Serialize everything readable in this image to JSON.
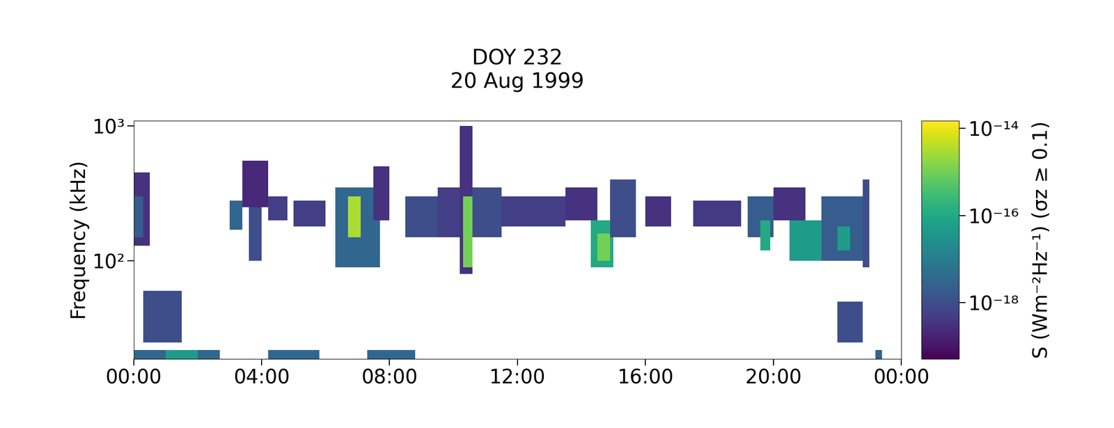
{
  "chart_data": {
    "type": "heatmap",
    "title": "DOY 232\n20 Aug 1999",
    "y_label": "Frequency (kHz)",
    "colorbar_label": "S (Wm⁻²Hz⁻¹) (σz ≥ 0.1)",
    "log": "y",
    "xlim": [
      0,
      24
    ],
    "xticks": [
      {
        "value": 0,
        "label": "00:00"
      },
      {
        "value": 4,
        "label": "04:00"
      },
      {
        "value": 8,
        "label": "08:00"
      },
      {
        "value": 12,
        "label": "12:00"
      },
      {
        "value": 16,
        "label": "16:00"
      },
      {
        "value": 20,
        "label": "20:00"
      },
      {
        "value": 24,
        "label": "00:00"
      }
    ],
    "ylim": [
      18.8,
      1090
    ],
    "yticks": [
      {
        "value": 100,
        "label": "10²"
      },
      {
        "value": 1000,
        "label": "10³"
      }
    ],
    "colorbar_range": [
      5e-20,
      1.5e-14
    ],
    "colorbar_ticks": [
      {
        "value": 1e-18,
        "label": "10⁻¹⁸"
      },
      {
        "value": 1e-16,
        "label": "10⁻¹⁶"
      },
      {
        "value": 1e-14,
        "label": "10⁻¹⁴"
      }
    ],
    "cells": [
      {
        "t0": 0.0,
        "t1": 0.5,
        "f0": 130,
        "f1": 450,
        "S": 3e-19
      },
      {
        "t0": 0.0,
        "t1": 0.3,
        "f0": 150,
        "f1": 300,
        "S": 2e-18
      },
      {
        "t0": 0.0,
        "t1": 2.7,
        "f0": 18.8,
        "f1": 22,
        "S": 3e-18
      },
      {
        "t0": 1.0,
        "t1": 2.0,
        "f0": 18.8,
        "f1": 22,
        "S": 5e-17
      },
      {
        "t0": 0.3,
        "t1": 1.5,
        "f0": 25,
        "f1": 60,
        "S": 1e-18
      },
      {
        "t0": 3.0,
        "t1": 3.4,
        "f0": 170,
        "f1": 280,
        "S": 3e-18
      },
      {
        "t0": 3.4,
        "t1": 4.2,
        "f0": 250,
        "f1": 550,
        "S": 2e-19
      },
      {
        "t0": 3.6,
        "t1": 4.0,
        "f0": 100,
        "f1": 250,
        "S": 1e-18
      },
      {
        "t0": 4.2,
        "t1": 4.8,
        "f0": 200,
        "f1": 300,
        "S": 5e-19
      },
      {
        "t0": 4.2,
        "t1": 5.8,
        "f0": 18.8,
        "f1": 22,
        "S": 3e-18
      },
      {
        "t0": 5.0,
        "t1": 6.0,
        "f0": 180,
        "f1": 280,
        "S": 5e-19
      },
      {
        "t0": 6.3,
        "t1": 7.7,
        "f0": 90,
        "f1": 350,
        "S": 3e-18
      },
      {
        "t0": 6.7,
        "t1": 7.1,
        "f0": 150,
        "f1": 300,
        "S": 3e-15
      },
      {
        "t0": 7.5,
        "t1": 8.0,
        "f0": 200,
        "f1": 500,
        "S": 3e-19
      },
      {
        "t0": 7.3,
        "t1": 8.8,
        "f0": 18.8,
        "f1": 22,
        "S": 3e-18
      },
      {
        "t0": 8.5,
        "t1": 9.5,
        "f0": 150,
        "f1": 300,
        "S": 1e-18
      },
      {
        "t0": 9.5,
        "t1": 10.2,
        "f0": 150,
        "f1": 350,
        "S": 5e-19
      },
      {
        "t0": 10.2,
        "t1": 10.6,
        "f0": 80,
        "f1": 1000,
        "S": 3e-19
      },
      {
        "t0": 10.3,
        "t1": 10.6,
        "f0": 90,
        "f1": 300,
        "S": 1e-15
      },
      {
        "t0": 10.6,
        "t1": 11.5,
        "f0": 150,
        "f1": 350,
        "S": 1e-18
      },
      {
        "t0": 11.5,
        "t1": 13.5,
        "f0": 180,
        "f1": 300,
        "S": 5e-19
      },
      {
        "t0": 13.5,
        "t1": 14.5,
        "f0": 200,
        "f1": 350,
        "S": 3e-19
      },
      {
        "t0": 14.3,
        "t1": 15.0,
        "f0": 90,
        "f1": 200,
        "S": 1e-16
      },
      {
        "t0": 14.5,
        "t1": 14.9,
        "f0": 100,
        "f1": 160,
        "S": 1e-15
      },
      {
        "t0": 14.9,
        "t1": 15.7,
        "f0": 150,
        "f1": 400,
        "S": 1e-18
      },
      {
        "t0": 16.0,
        "t1": 16.8,
        "f0": 180,
        "f1": 300,
        "S": 3e-19
      },
      {
        "t0": 17.5,
        "t1": 19.0,
        "f0": 180,
        "f1": 280,
        "S": 4e-19
      },
      {
        "t0": 19.2,
        "t1": 20.0,
        "f0": 150,
        "f1": 300,
        "S": 2e-18
      },
      {
        "t0": 19.6,
        "t1": 19.9,
        "f0": 120,
        "f1": 200,
        "S": 1e-16
      },
      {
        "t0": 20.0,
        "t1": 21.0,
        "f0": 200,
        "f1": 350,
        "S": 3e-19
      },
      {
        "t0": 20.5,
        "t1": 21.5,
        "f0": 100,
        "f1": 200,
        "S": 5e-17
      },
      {
        "t0": 21.5,
        "t1": 22.8,
        "f0": 100,
        "f1": 300,
        "S": 2e-18
      },
      {
        "t0": 22.0,
        "t1": 22.4,
        "f0": 120,
        "f1": 180,
        "S": 5e-17
      },
      {
        "t0": 22.8,
        "t1": 23.0,
        "f0": 90,
        "f1": 400,
        "S": 1e-18
      },
      {
        "t0": 22.0,
        "t1": 22.8,
        "f0": 25,
        "f1": 50,
        "S": 1e-18
      },
      {
        "t0": 23.2,
        "t1": 23.4,
        "f0": 18.8,
        "f1": 22,
        "S": 3e-18
      }
    ]
  }
}
